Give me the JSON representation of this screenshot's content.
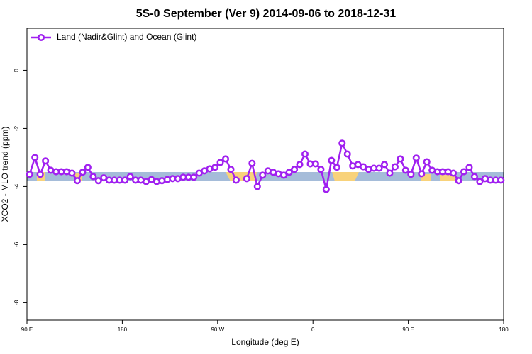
{
  "chart_data": {
    "type": "line",
    "title": "5S-0 September (Ver 9)   2014-09-06 to 2018-12-31",
    "xlabel": "Longitude (deg E)",
    "ylabel": "XCO2 - MLO trend (ppm)",
    "x": [
      92.5,
      97.5,
      102.5,
      107.5,
      112.5,
      117.5,
      122.5,
      127.5,
      132.5,
      137.5,
      142.5,
      147.5,
      152.5,
      157.5,
      162.5,
      167.5,
      172.5,
      177.5,
      182.5,
      187.5,
      192.5,
      197.5,
      202.5,
      207.5,
      212.5,
      217.5,
      222.5,
      227.5,
      232.5,
      237.5,
      242.5,
      247.5,
      252.5,
      257.5,
      262.5,
      267.5,
      272.5,
      277.5,
      282.5,
      287.5,
      292.5,
      297.5,
      302.5,
      307.5,
      312.5,
      317.5,
      322.5,
      327.5,
      332.5,
      337.5,
      342.5,
      347.5,
      352.5,
      357.5,
      362.5,
      367.5,
      372.5,
      377.5,
      382.5,
      387.5,
      392.5,
      397.5,
      402.5,
      407.5,
      412.5,
      417.5,
      422.5,
      427.5,
      432.5,
      437.5,
      442.5,
      447.5,
      452.5,
      457.5,
      462.5,
      467.5,
      472.5,
      477.5,
      482.5,
      487.5,
      492.5,
      497.5,
      502.5,
      507.5,
      512.5,
      517.5,
      522.5,
      527.5,
      532.5,
      537.5
    ],
    "series": [
      {
        "name": "Land (Nadir&Glint) and Ocean (Glint)",
        "color": "#a020f0",
        "values": [
          -3.58,
          -3.0,
          -3.58,
          -3.12,
          -3.44,
          -3.49,
          -3.49,
          -3.49,
          -3.54,
          -3.8,
          -3.51,
          -3.34,
          -3.66,
          -3.8,
          -3.7,
          -3.78,
          -3.78,
          -3.78,
          -3.78,
          -3.66,
          -3.78,
          -3.78,
          -3.83,
          -3.76,
          -3.83,
          -3.8,
          -3.76,
          -3.73,
          -3.73,
          -3.68,
          -3.68,
          -3.68,
          -3.54,
          -3.46,
          -3.39,
          -3.34,
          -3.17,
          -3.05,
          -3.41,
          -3.78,
          null,
          -3.73,
          -3.2,
          -4.0,
          -3.61,
          -3.46,
          -3.51,
          -3.56,
          -3.61,
          -3.51,
          -3.41,
          -3.24,
          -2.88,
          -3.22,
          -3.22,
          -3.41,
          -4.1,
          -3.1,
          -3.34,
          -2.51,
          -2.88,
          -3.29,
          -3.24,
          -3.32,
          -3.41,
          -3.37,
          -3.37,
          -3.24,
          -3.54,
          -3.32,
          -3.05,
          -3.44,
          -3.58,
          -3.02,
          -3.56,
          -3.15,
          -3.44,
          -3.49,
          -3.49,
          -3.49,
          -3.54,
          -3.8,
          -3.49,
          -3.34,
          -3.66,
          -3.83,
          -3.73,
          -3.78,
          -3.78,
          -3.78
        ]
      }
    ],
    "xlim": [
      90,
      540
    ],
    "xticks": [
      {
        "value": 90,
        "label": "90 E"
      },
      180,
      {
        "value": 270,
        "label": "90 W"
      },
      {
        "value": 360,
        "label": "0"
      },
      {
        "value": 450,
        "label": "90 E"
      },
      {
        "value": 540,
        "label": "180"
      }
    ],
    "ylim": [
      -8.6,
      1.45
    ],
    "yticks": [
      0,
      -2,
      -4,
      -6,
      -8
    ],
    "legend": "top-left"
  }
}
